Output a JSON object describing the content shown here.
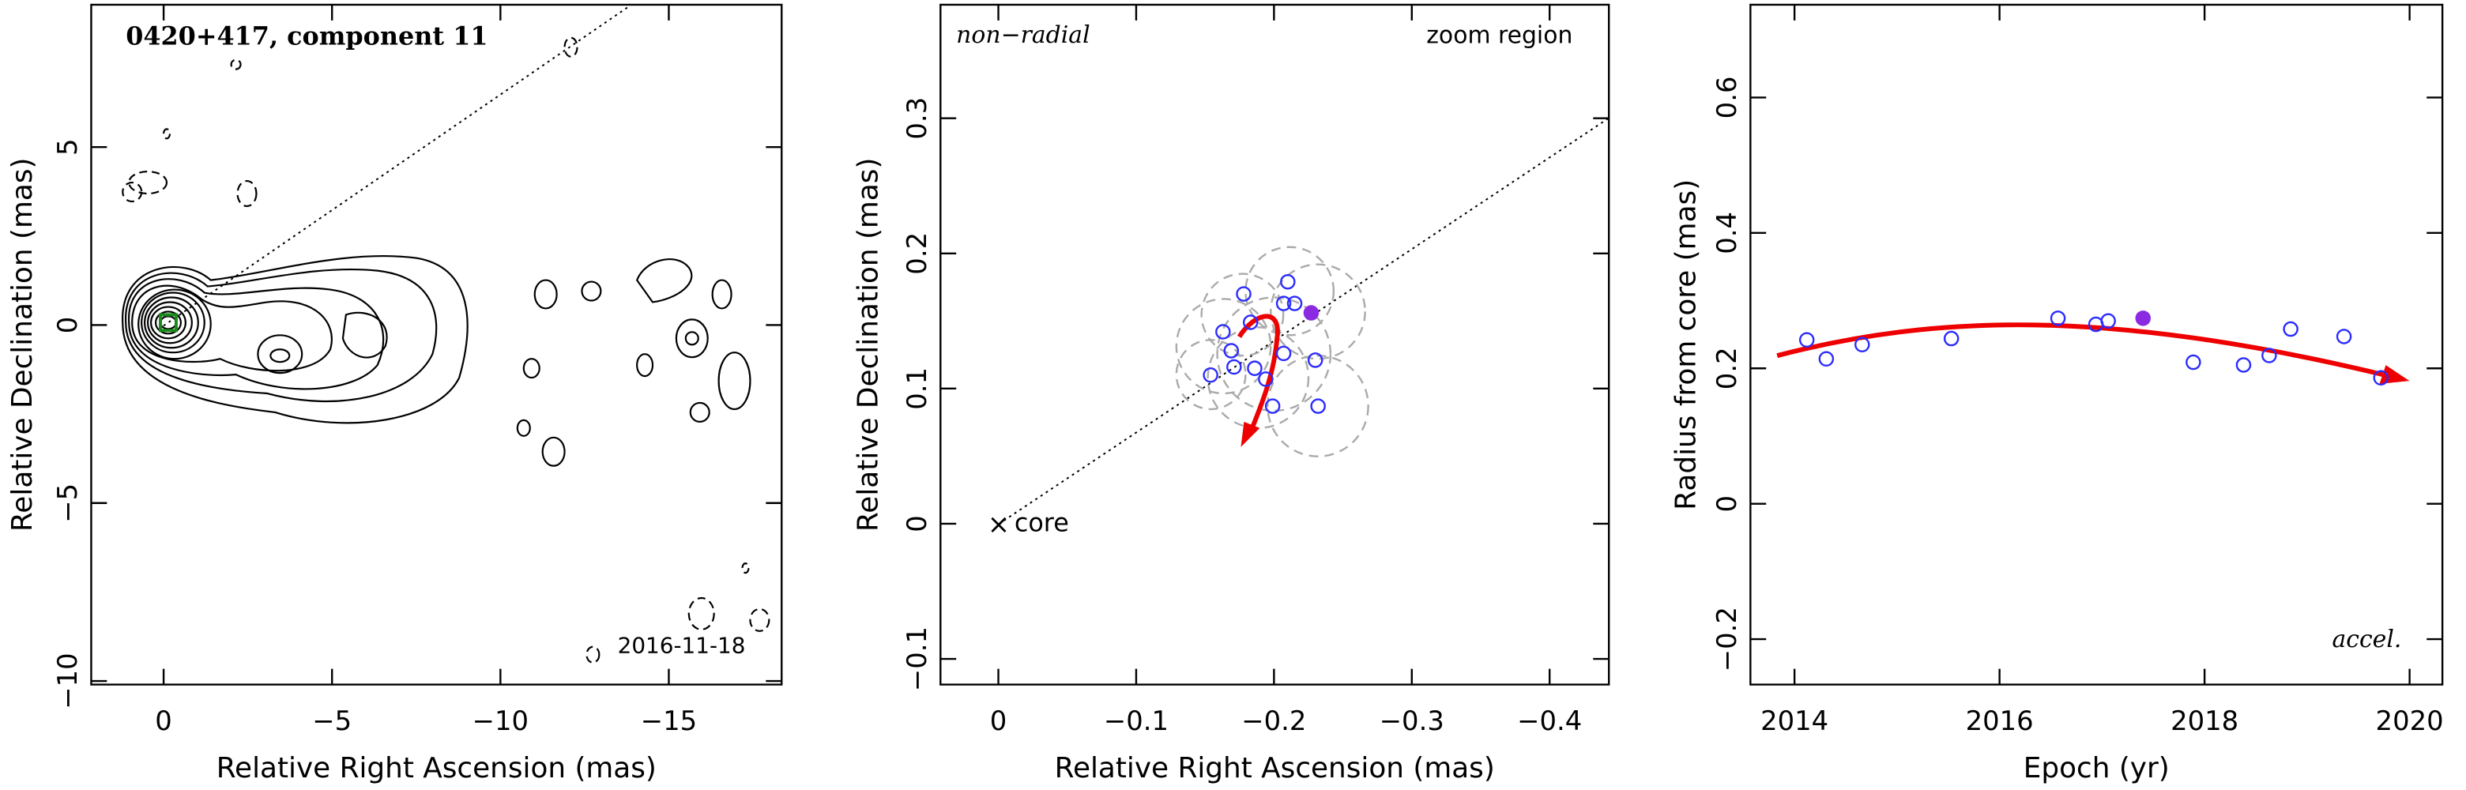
{
  "chart_data": [
    {
      "type": "contour",
      "title": "0420+417, component 11",
      "annotation": "2016-11-18",
      "xlabel": "Relative Right Ascension (mas)",
      "ylabel": "Relative Declination (mas)",
      "xlim": [
        2.15,
        -18.35
      ],
      "ylim": [
        -10.1,
        9.0
      ],
      "xticks": [
        0,
        {
          "value": -5,
          "label": "−5"
        },
        {
          "value": -10,
          "label": "−10"
        },
        {
          "value": -15,
          "label": "−15"
        }
      ],
      "yticks": [
        {
          "value": -10,
          "label": "−10"
        },
        {
          "value": -5,
          "label": "−5"
        },
        0,
        5
      ]
    },
    {
      "type": "scatter",
      "annotations": [
        "non−radial",
        "zoom region",
        "core"
      ],
      "xlabel": "Relative Right Ascension (mas)",
      "ylabel": "Relative Declination (mas)",
      "xlim": [
        0.042,
        -0.443
      ],
      "ylim": [
        -0.119,
        0.384
      ],
      "xticks": [
        0,
        {
          "value": -0.1,
          "label": "−0.1"
        },
        {
          "value": -0.2,
          "label": "−0.2"
        },
        {
          "value": -0.3,
          "label": "−0.3"
        },
        {
          "value": -0.4,
          "label": "−0.4"
        }
      ],
      "yticks": [
        {
          "value": -0.1,
          "label": "−0.1"
        },
        0,
        0.1,
        0.2,
        0.3
      ],
      "series": [
        {
          "color": "#2b2bff",
          "marker": "open",
          "x": [
            -0.154,
            -0.163,
            -0.169,
            -0.171,
            -0.178,
            -0.183,
            -0.186,
            -0.194,
            -0.199,
            -0.207,
            -0.21,
            -0.215,
            -0.207,
            -0.23,
            -0.232
          ],
          "values": [
            0.11,
            0.142,
            0.128,
            0.116,
            0.17,
            0.149,
            0.115,
            0.107,
            0.087,
            0.163,
            0.179,
            0.163,
            0.126,
            0.121,
            0.087
          ]
        },
        {
          "color": "#8a2be2",
          "marker": "filled",
          "x": [
            -0.227
          ],
          "values": [
            0.156
          ]
        }
      ]
    },
    {
      "type": "scatter",
      "annotations": [
        "accel."
      ],
      "xlabel": "Epoch (yr)",
      "ylabel": "Radius from core (mas)",
      "xlim": [
        2013.57,
        2020.32
      ],
      "ylim": [
        -0.267,
        0.737
      ],
      "xticks": [
        2014,
        2016,
        2018,
        2020
      ],
      "yticks": [
        {
          "value": -0.2,
          "label": "−0.2"
        },
        0,
        0.2,
        0.4,
        0.6
      ],
      "series": [
        {
          "color": "#2b2bff",
          "marker": "open",
          "x": [
            2014.12,
            2014.31,
            2014.66,
            2015.53,
            2016.57,
            2016.94,
            2017.06,
            2017.89,
            2018.38,
            2018.63,
            2018.84,
            2019.36,
            2019.72
          ],
          "values": [
            0.242,
            0.214,
            0.235,
            0.244,
            0.274,
            0.265,
            0.27,
            0.209,
            0.205,
            0.219,
            0.258,
            0.247,
            0.186
          ]
        },
        {
          "color": "#8a2be2",
          "marker": "filled",
          "x": [
            2017.4
          ],
          "values": [
            0.274
          ]
        }
      ]
    }
  ]
}
